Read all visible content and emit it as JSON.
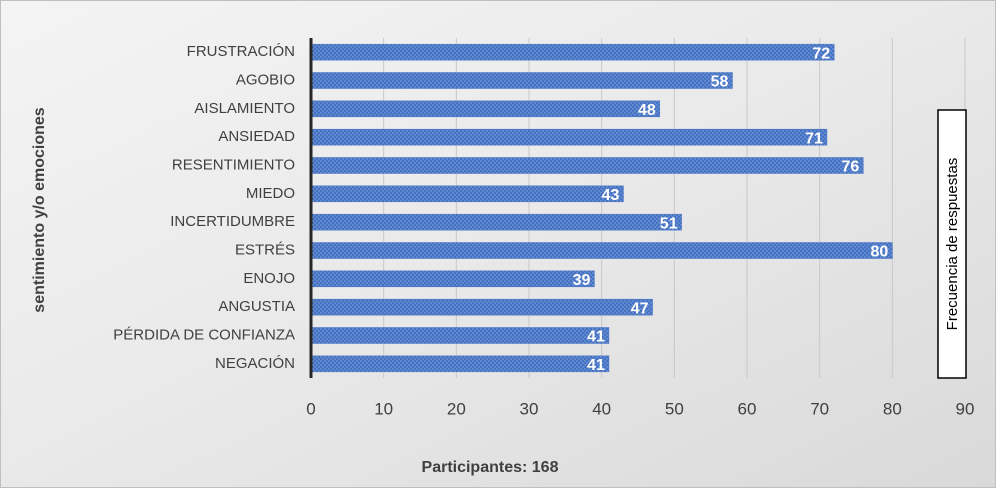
{
  "chart_data": {
    "type": "bar",
    "orientation": "horizontal",
    "categories": [
      "FRUSTRACIÓN",
      "AGOBIO",
      "AISLAMIENTO",
      "ANSIEDAD",
      "RESENTIMIENTO",
      "MIEDO",
      "INCERTIDUMBRE",
      "ESTRÉS",
      "ENOJO",
      "ANGUSTIA",
      "PÉRDIDA DE CONFIANZA",
      "NEGACIÓN"
    ],
    "values": [
      72,
      58,
      48,
      71,
      76,
      43,
      51,
      80,
      39,
      47,
      41,
      41
    ],
    "color": "#4472c4",
    "xlabel": "Participantes: 168",
    "ylabel": "sentimiento y/o emociones",
    "annotation": "Frecuencia de respuestas",
    "xlim": [
      0,
      90
    ],
    "xticks": [
      0,
      10,
      20,
      30,
      40,
      50,
      60,
      70,
      80,
      90
    ],
    "grid": true
  }
}
